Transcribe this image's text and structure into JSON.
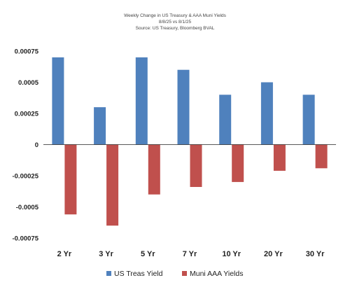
{
  "chart_data": {
    "type": "bar",
    "title_lines": [
      "Weekly Change in US Treasury & AAA Muni Yields",
      "8/8/25 vs 8/1/25",
      "Source: US Treasury, Bloomberg BVAL"
    ],
    "categories": [
      "2 Yr",
      "3 Yr",
      "5 Yr",
      "7 Yr",
      "10 Yr",
      "20 Yr",
      "30 Yr"
    ],
    "series": [
      {
        "name": "US Treas Yield",
        "color": "#4F81BD",
        "values": [
          0.0007,
          0.0003,
          0.0007,
          0.0006,
          0.0004,
          0.0005,
          0.0004
        ]
      },
      {
        "name": "Muni AAA Yields",
        "color": "#C0504D",
        "values": [
          -0.00056,
          -0.00065,
          -0.0004,
          -0.00034,
          -0.0003,
          -0.00021,
          -0.00019
        ]
      }
    ],
    "y_ticks": [
      "0.00075",
      "0.0005",
      "0.00025",
      "0",
      "-0.00025",
      "-0.0005",
      "-0.00075"
    ],
    "ylim": [
      -0.00075,
      0.00075
    ],
    "legend_position": "bottom",
    "grid": false
  }
}
